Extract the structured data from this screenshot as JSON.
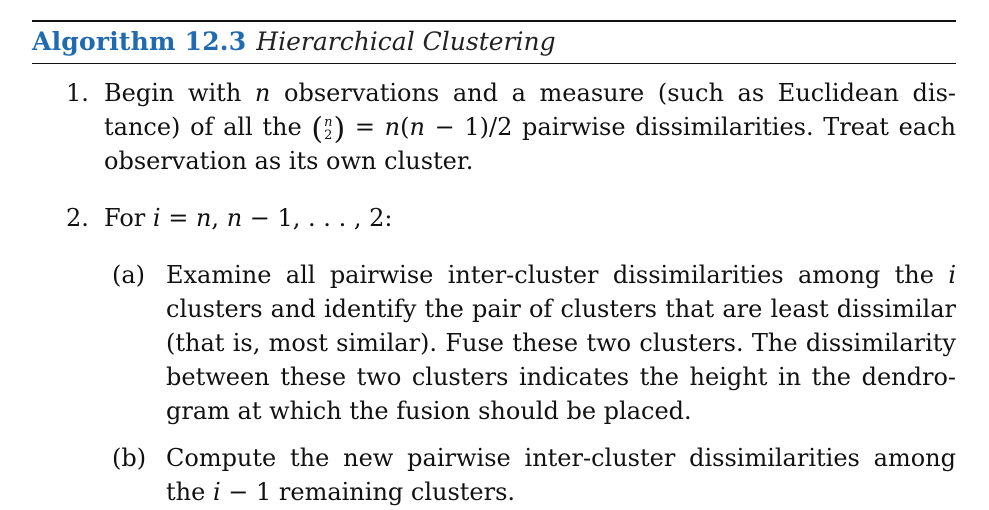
{
  "algorithm": {
    "label": "Algorithm 12.3",
    "title": "Hierarchical Clustering"
  },
  "steps": [
    {
      "number": "1.",
      "lines": [
        "Begin with n observations and a measure (such as Euclidean dis-",
        "tance) of all the (n 2) = n(n − 1)/2 pairwise dissimilarities. Treat each",
        "observation as its own cluster."
      ]
    },
    {
      "number": "2.",
      "lines": [
        "For i = n, n − 1, . . . , 2:"
      ],
      "substeps": [
        {
          "label": "(a)",
          "lines": [
            "Examine all pairwise inter-cluster dissimilarities among the i",
            "clusters and identify the pair of clusters that are least dissimilar",
            "(that is, most similar). Fuse these two clusters. The dissimilarity",
            "between these two clusters indicates the height in the dendro-",
            "gram at which the fusion should be placed."
          ]
        },
        {
          "label": "(b)",
          "lines": [
            "Compute the new pairwise inter-cluster dissimilarities among",
            "the i − 1 remaining clusters."
          ]
        }
      ]
    }
  ]
}
